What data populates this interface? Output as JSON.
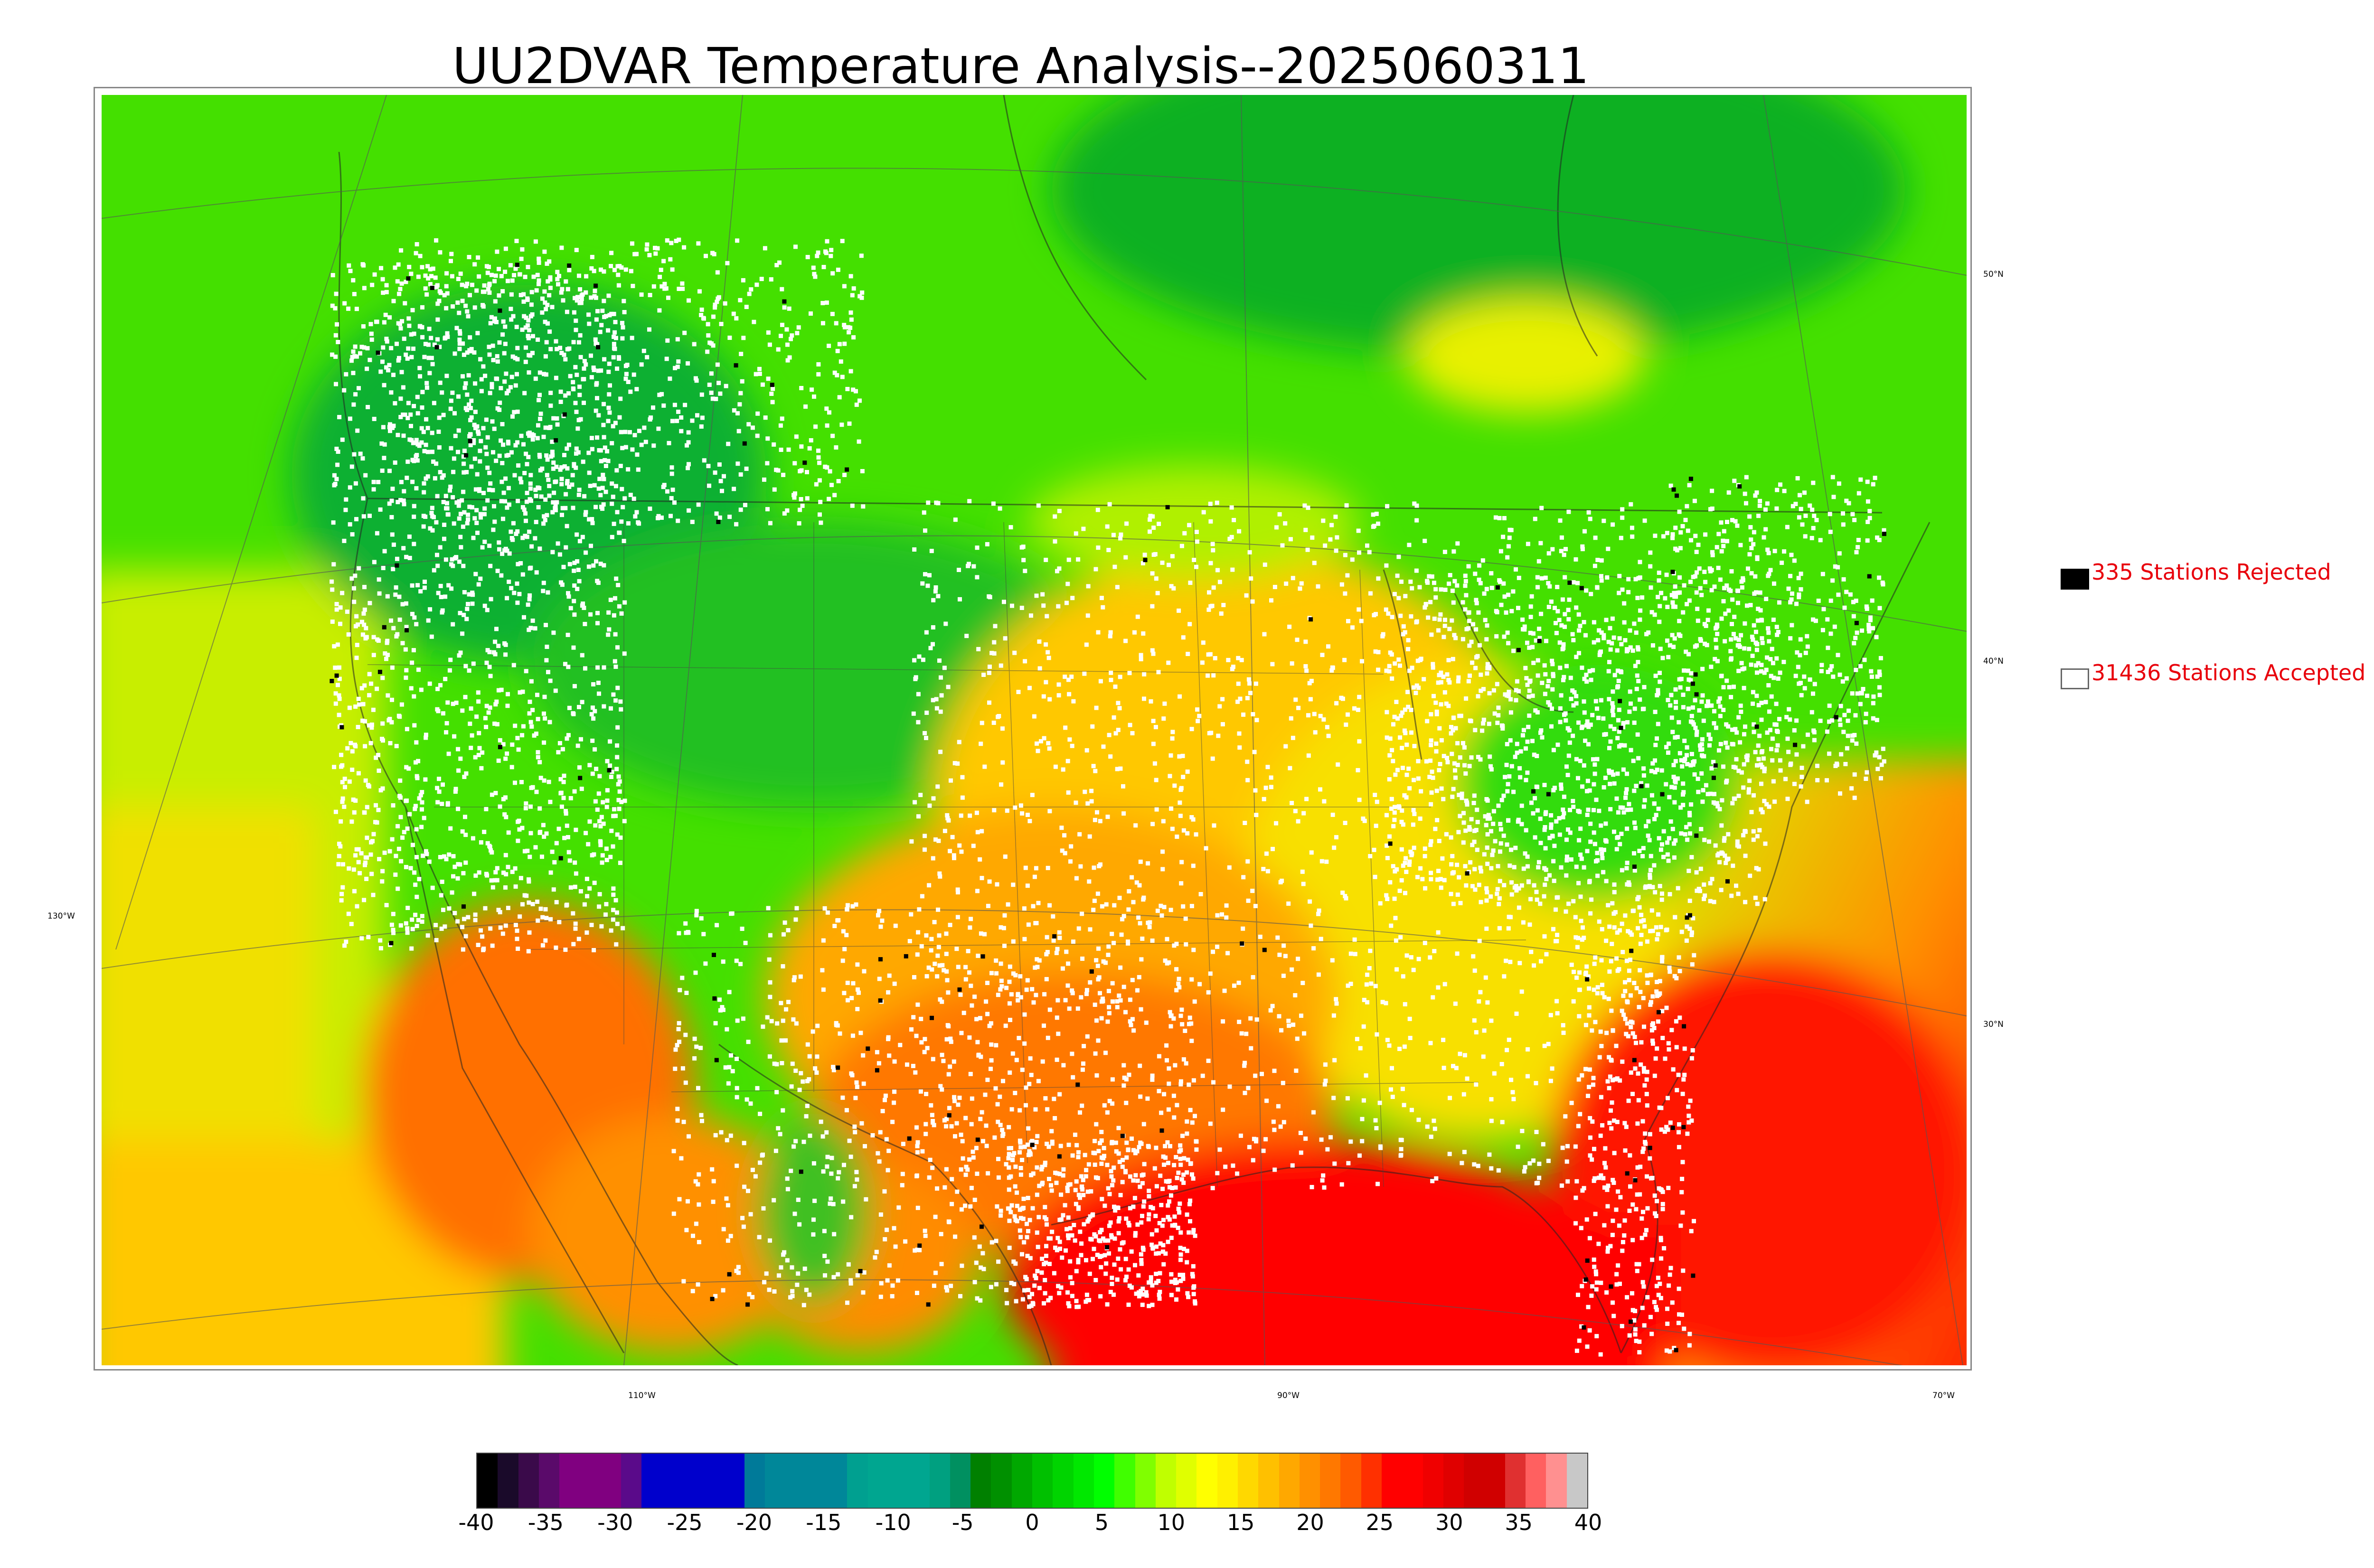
{
  "title": "UU2DVAR Temperature Analysis--2025060311",
  "legend": {
    "rejected": {
      "label": "335 Stations Rejected",
      "color": "#000000"
    },
    "accepted": {
      "label": "31436 Stations Accepted",
      "color": "#ffffff"
    }
  },
  "lat_labels": [
    {
      "text": "50°N",
      "side": "right"
    },
    {
      "text": "40°N",
      "side": "right"
    },
    {
      "text": "30°N",
      "side": "right"
    },
    {
      "text": "130°W",
      "side": "left"
    }
  ],
  "lon_labels": [
    "110°W",
    "90°W",
    "70°W"
  ],
  "colorbar": {
    "min": -40,
    "max": 40,
    "ticks": [
      "-40",
      "-35",
      "-30",
      "-25",
      "-20",
      "-15",
      "-10",
      "-5",
      "0",
      "5",
      "10",
      "15",
      "20",
      "25",
      "30",
      "35",
      "40"
    ],
    "colors": [
      "#000000",
      "#1a0a2a",
      "#3a0a4a",
      "#5a0a6a",
      "#800080",
      "#800080",
      "#800080",
      "#5a0a8a",
      "#0000cc",
      "#0000cc",
      "#0000cc",
      "#0000cc",
      "#0000cc",
      "#007a99",
      "#008799",
      "#008799",
      "#008799",
      "#008799",
      "#00a090",
      "#00a690",
      "#00a690",
      "#00a690",
      "#00a080",
      "#009060",
      "#008000",
      "#009000",
      "#00a800",
      "#00c000",
      "#00d400",
      "#00e800",
      "#00ff00",
      "#40ff00",
      "#80ff00",
      "#c0ff00",
      "#e0ff00",
      "#ffff00",
      "#fff000",
      "#ffd800",
      "#ffc000",
      "#ffa800",
      "#ff9000",
      "#ff7800",
      "#ff5a00",
      "#ff3000",
      "#ff0000",
      "#ff0000",
      "#f00000",
      "#e00000",
      "#d00000",
      "#d00000",
      "#e03030",
      "#ff6060",
      "#ff9090",
      "#c8c8c8"
    ]
  }
}
